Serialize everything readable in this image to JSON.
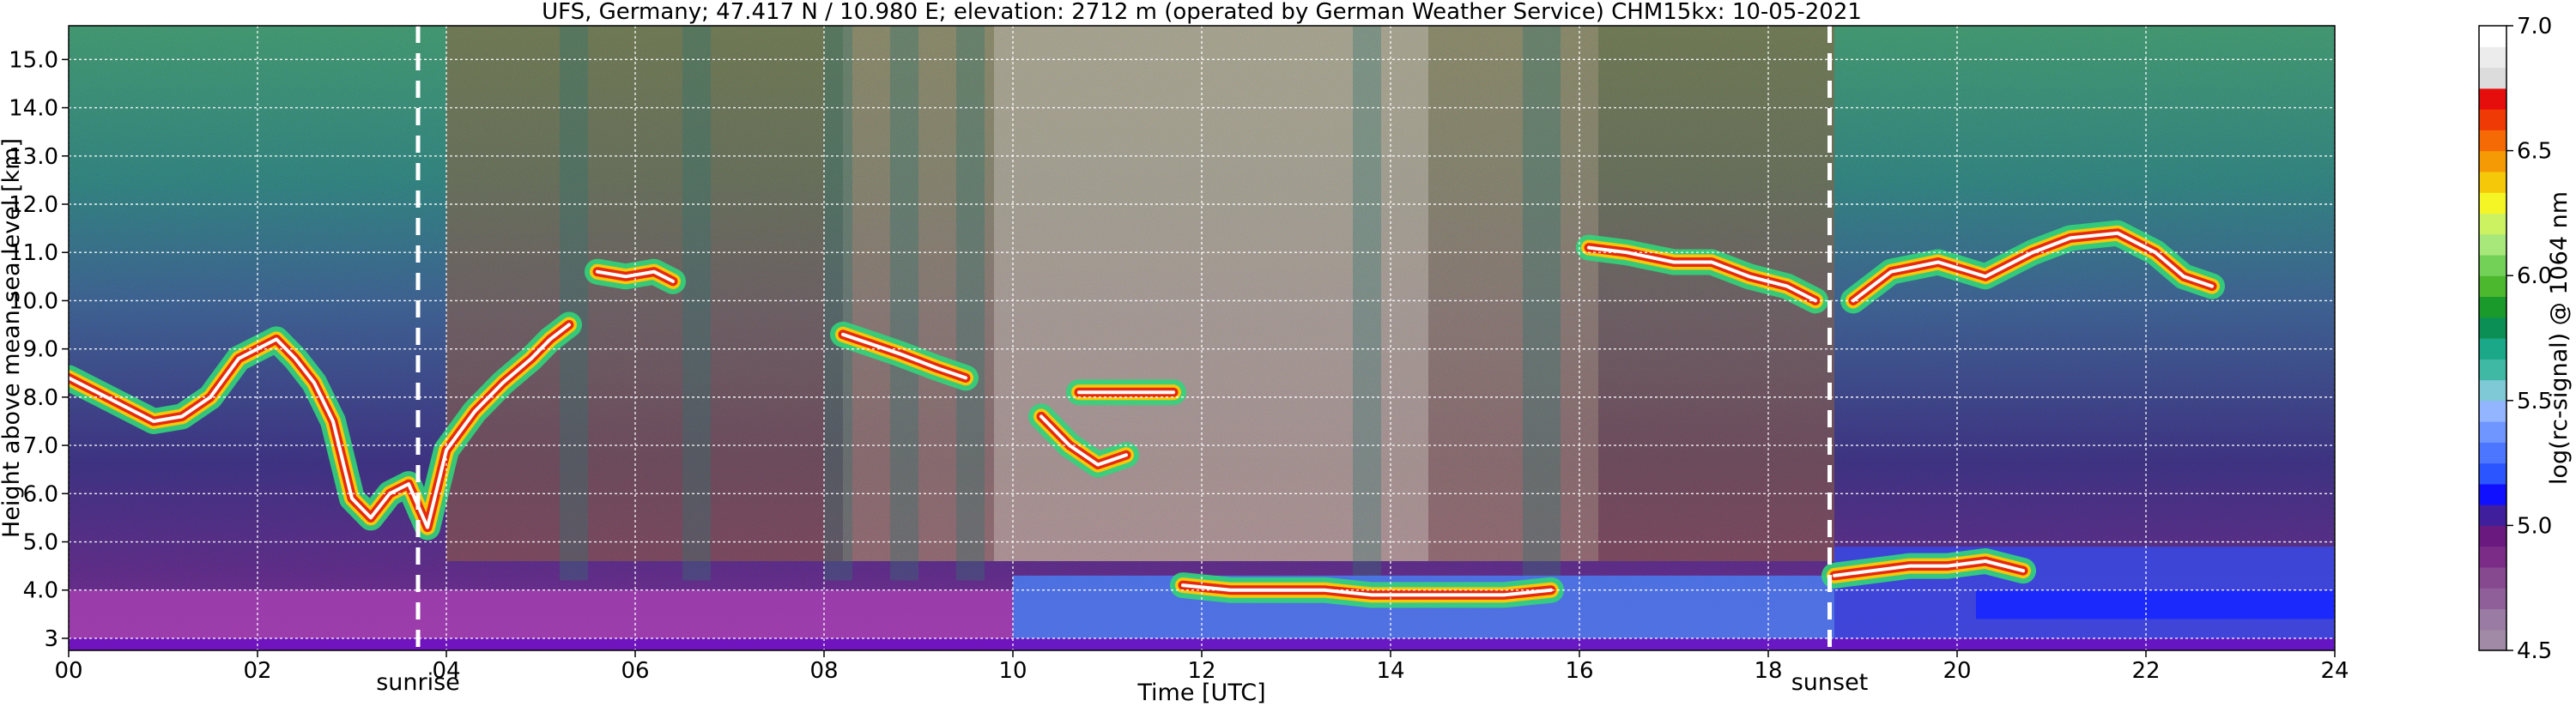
{
  "chart_data": {
    "type": "heatmap",
    "title": "UFS, Germany; 47.417 N / 10.980 E; elevation: 2712 m  (operated by German Weather Service)    CHM15kx: 10-05-2021",
    "xlabel": "Time [UTC]",
    "ylabel": "Height above mean sea level [km]",
    "colorbar_label": "log(rc-signal) @ 1064 nm",
    "xlim": [
      0,
      24
    ],
    "ylim": [
      2.75,
      15.7
    ],
    "x_ticks": [
      {
        "value": 0,
        "label": "00"
      },
      {
        "value": 2,
        "label": "02"
      },
      {
        "value": 4,
        "label": "04"
      },
      {
        "value": 6,
        "label": "06"
      },
      {
        "value": 8,
        "label": "08"
      },
      {
        "value": 10,
        "label": "10"
      },
      {
        "value": 12,
        "label": "12"
      },
      {
        "value": 14,
        "label": "14"
      },
      {
        "value": 16,
        "label": "16"
      },
      {
        "value": 18,
        "label": "18"
      },
      {
        "value": 20,
        "label": "20"
      },
      {
        "value": 22,
        "label": "22"
      },
      {
        "value": 24,
        "label": "24"
      }
    ],
    "y_ticks": [
      {
        "value": 3,
        "label": "3"
      },
      {
        "value": 4,
        "label": "4.0"
      },
      {
        "value": 5,
        "label": "5.0"
      },
      {
        "value": 6,
        "label": "6.0"
      },
      {
        "value": 7,
        "label": "7.0"
      },
      {
        "value": 8,
        "label": "8.0"
      },
      {
        "value": 9,
        "label": "9.0"
      },
      {
        "value": 10,
        "label": "10.0"
      },
      {
        "value": 11,
        "label": "11.0"
      },
      {
        "value": 12,
        "label": "12.0"
      },
      {
        "value": 13,
        "label": "13.0"
      },
      {
        "value": 14,
        "label": "14.0"
      },
      {
        "value": 15,
        "label": "15.0"
      }
    ],
    "colorbar": {
      "range": [
        4.5,
        7.0
      ],
      "ticks": [
        {
          "value": 4.5,
          "label": "4.5"
        },
        {
          "value": 5.0,
          "label": "5.0"
        },
        {
          "value": 5.5,
          "label": "5.5"
        },
        {
          "value": 6.0,
          "label": "6.0"
        },
        {
          "value": 6.5,
          "label": "6.5"
        },
        {
          "value": 7.0,
          "label": "7.0"
        }
      ],
      "colors": [
        "#a08aa6",
        "#9a7ba3",
        "#8e5f98",
        "#86488f",
        "#7a2c86",
        "#6a1a7f",
        "#3f1f9c",
        "#1010ff",
        "#2a55ff",
        "#4c76ff",
        "#6f95ff",
        "#93b4ff",
        "#7fc8d6",
        "#3fb9a3",
        "#1aa888",
        "#0c8f55",
        "#1a9a2a",
        "#4cb82e",
        "#73d158",
        "#a8e87b",
        "#ccf262",
        "#f5f526",
        "#f5c80a",
        "#f59a05",
        "#f56a05",
        "#f03a05",
        "#e60d0d",
        "#dcdcdc",
        "#ececec",
        "#ffffff"
      ]
    },
    "grid": true,
    "annotations": [
      {
        "label": "sunrise",
        "x": 3.7
      },
      {
        "label": "sunset",
        "x": 18.65
      }
    ],
    "features": [
      {
        "kind": "cloud_layer",
        "points": [
          [
            0.0,
            8.4
          ],
          [
            0.3,
            8.1
          ],
          [
            0.6,
            7.8
          ],
          [
            0.9,
            7.5
          ],
          [
            1.2,
            7.6
          ],
          [
            1.5,
            8.0
          ],
          [
            1.8,
            8.8
          ],
          [
            2.0,
            9.0
          ],
          [
            2.2,
            9.2
          ],
          [
            2.4,
            8.8
          ],
          [
            2.6,
            8.3
          ],
          [
            2.8,
            7.5
          ],
          [
            3.0,
            5.9
          ],
          [
            3.2,
            5.5
          ],
          [
            3.4,
            6.0
          ],
          [
            3.6,
            6.2
          ],
          [
            3.8,
            5.3
          ],
          [
            4.0,
            6.9
          ],
          [
            4.3,
            7.7
          ],
          [
            4.6,
            8.3
          ],
          [
            4.9,
            8.8
          ],
          [
            5.1,
            9.2
          ],
          [
            5.3,
            9.5
          ]
        ]
      },
      {
        "kind": "cloud_layer",
        "points": [
          [
            5.6,
            10.6
          ],
          [
            5.9,
            10.5
          ],
          [
            6.2,
            10.6
          ],
          [
            6.4,
            10.4
          ]
        ]
      },
      {
        "kind": "cloud_layer",
        "points": [
          [
            8.2,
            9.3
          ],
          [
            8.5,
            9.1
          ],
          [
            8.8,
            8.9
          ],
          [
            9.2,
            8.6
          ],
          [
            9.5,
            8.4
          ]
        ]
      },
      {
        "kind": "cloud_layer",
        "points": [
          [
            10.3,
            7.6
          ],
          [
            10.6,
            7.0
          ],
          [
            10.9,
            6.6
          ],
          [
            11.2,
            6.8
          ]
        ]
      },
      {
        "kind": "cloud_layer",
        "points": [
          [
            10.7,
            8.1
          ],
          [
            11.0,
            8.1
          ],
          [
            11.4,
            8.1
          ],
          [
            11.7,
            8.1
          ]
        ]
      },
      {
        "kind": "cloud_layer",
        "points": [
          [
            11.8,
            4.1
          ],
          [
            12.3,
            4.0
          ],
          [
            12.8,
            4.0
          ],
          [
            13.3,
            4.0
          ],
          [
            13.8,
            3.9
          ],
          [
            14.3,
            3.9
          ],
          [
            14.8,
            3.9
          ],
          [
            15.2,
            3.9
          ],
          [
            15.7,
            4.0
          ]
        ]
      },
      {
        "kind": "cloud_layer",
        "points": [
          [
            16.1,
            11.1
          ],
          [
            16.5,
            11.0
          ],
          [
            17.0,
            10.8
          ],
          [
            17.4,
            10.8
          ],
          [
            17.8,
            10.5
          ],
          [
            18.2,
            10.3
          ],
          [
            18.5,
            10.0
          ]
        ]
      },
      {
        "kind": "cloud_layer",
        "points": [
          [
            18.9,
            10.0
          ],
          [
            19.3,
            10.6
          ],
          [
            19.8,
            10.8
          ],
          [
            20.3,
            10.5
          ],
          [
            20.8,
            11.0
          ],
          [
            21.2,
            11.3
          ],
          [
            21.7,
            11.4
          ],
          [
            22.1,
            11.0
          ],
          [
            22.4,
            10.5
          ],
          [
            22.7,
            10.3
          ]
        ]
      },
      {
        "kind": "cloud_layer",
        "points": [
          [
            18.7,
            4.3
          ],
          [
            19.1,
            4.4
          ],
          [
            19.5,
            4.5
          ],
          [
            19.9,
            4.5
          ],
          [
            20.3,
            4.6
          ],
          [
            20.7,
            4.4
          ]
        ]
      }
    ]
  }
}
